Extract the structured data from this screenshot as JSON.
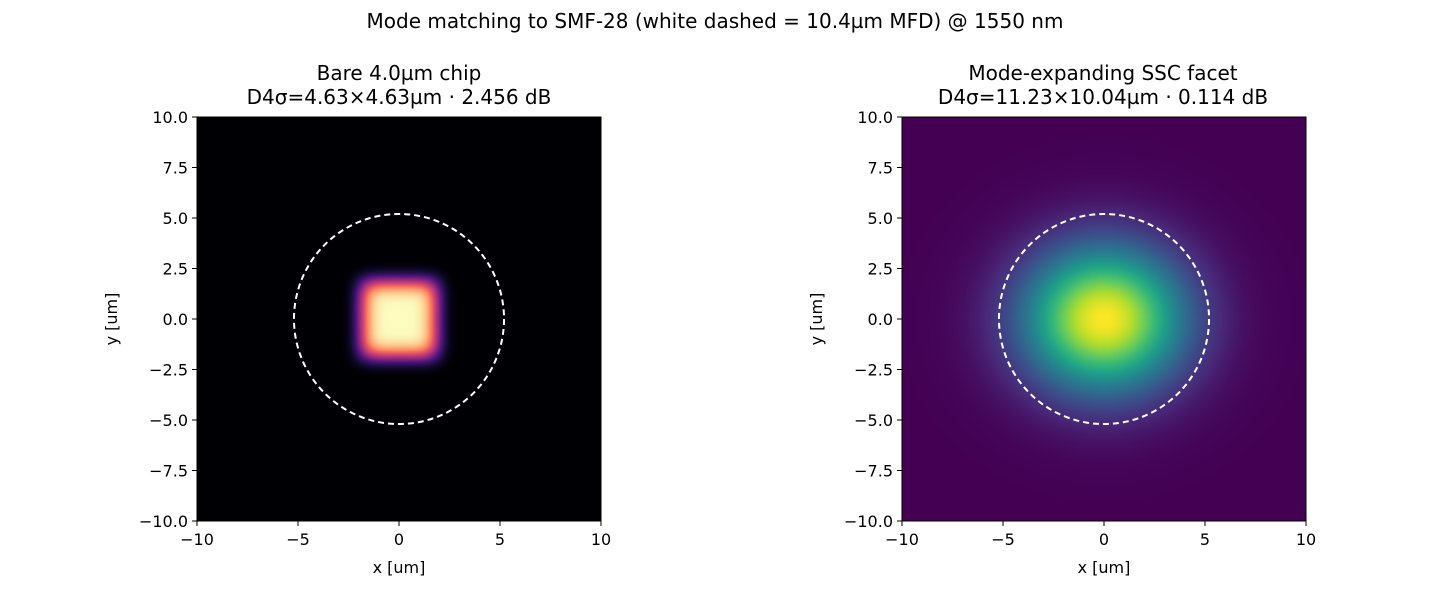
{
  "figure": {
    "suptitle": "Mode matching to SMF-28 (white dashed = 10.4µm MFD) @ 1550 nm"
  },
  "chart_data": [
    {
      "type": "heatmap",
      "title_line1": "Bare 4.0µm chip",
      "title_line2": "D4σ=4.63×4.63µm · 2.456 dB",
      "xlabel": "x [um]",
      "ylabel": "y [um]",
      "xlim": [
        -10,
        10
      ],
      "ylim": [
        -10,
        10
      ],
      "xticks": [
        -10,
        -5,
        0,
        5,
        10
      ],
      "xtick_labels": [
        "−10",
        "−5",
        "0",
        "5",
        "10"
      ],
      "yticks": [
        10,
        7.5,
        5,
        2.5,
        0,
        -2.5,
        -5,
        -7.5,
        -10
      ],
      "ytick_labels": [
        "10.0",
        "7.5",
        "5.0",
        "2.5",
        "0.0",
        "−2.5",
        "−5.0",
        "−7.5",
        "−10.0"
      ],
      "colormap": "magma",
      "mode": {
        "center_x": 0,
        "center_y": 0,
        "d4sigma_x_um": 4.63,
        "d4sigma_y_um": 4.63,
        "supergaussian_order": 2.4
      },
      "overlay_circle": {
        "center_x": 0,
        "center_y": 0,
        "radius_um": 5.2,
        "color": "#ffffff",
        "dashed": true
      },
      "coupling_loss_db": 2.456
    },
    {
      "type": "heatmap",
      "title_line1": "Mode-expanding SSC facet",
      "title_line2": "D4σ=11.23×10.04µm · 0.114 dB",
      "xlabel": "x [um]",
      "ylabel": "y [um]",
      "xlim": [
        -10,
        10
      ],
      "ylim": [
        -10,
        10
      ],
      "xticks": [
        -10,
        -5,
        0,
        5,
        10
      ],
      "xtick_labels": [
        "−10",
        "−5",
        "0",
        "5",
        "10"
      ],
      "yticks": [
        10,
        7.5,
        5,
        2.5,
        0,
        -2.5,
        -5,
        -7.5,
        -10
      ],
      "ytick_labels": [
        "10.0",
        "7.5",
        "5.0",
        "2.5",
        "0.0",
        "−2.5",
        "−5.0",
        "−7.5",
        "−10.0"
      ],
      "colormap": "viridis",
      "mode": {
        "center_x": 0,
        "center_y": 0,
        "d4sigma_x_um": 11.23,
        "d4sigma_y_um": 10.04,
        "supergaussian_order": 1.0
      },
      "overlay_circle": {
        "center_x": 0,
        "center_y": 0,
        "radius_um": 5.2,
        "color": "#ffffff",
        "dashed": true
      },
      "coupling_loss_db": 0.114
    }
  ]
}
